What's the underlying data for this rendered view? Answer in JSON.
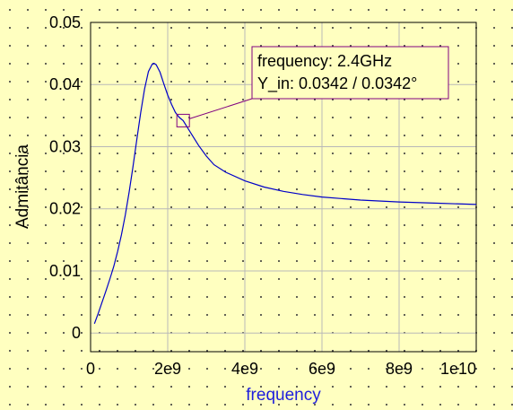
{
  "chart_data": {
    "type": "line",
    "xlabel": "frequency",
    "ylabel": "Admitância",
    "xlim": [
      0,
      10000000000
    ],
    "ylim": [
      -0.003,
      0.05
    ],
    "xticks": [
      {
        "value": 0,
        "label": "0"
      },
      {
        "value": 2000000000,
        "label": "2e9"
      },
      {
        "value": 4000000000,
        "label": "4e9"
      },
      {
        "value": 6000000000,
        "label": "6e9"
      },
      {
        "value": 8000000000,
        "label": "8e9"
      },
      {
        "value": 10000000000,
        "label": "1e10"
      }
    ],
    "yticks": [
      {
        "value": 0,
        "label": "0"
      },
      {
        "value": 0.01,
        "label": "0.01"
      },
      {
        "value": 0.02,
        "label": "0.02"
      },
      {
        "value": 0.03,
        "label": "0.03"
      },
      {
        "value": 0.04,
        "label": "0.04"
      },
      {
        "value": 0.05,
        "label": "0.05"
      }
    ],
    "grid": true,
    "series": [
      {
        "color": "#0000c8",
        "points": [
          [
            100000000,
            0.0015
          ],
          [
            200000000,
            0.0032
          ],
          [
            300000000,
            0.005
          ],
          [
            400000000,
            0.0068
          ],
          [
            500000000,
            0.0087
          ],
          [
            600000000,
            0.0107
          ],
          [
            700000000,
            0.0131
          ],
          [
            800000000,
            0.0158
          ],
          [
            900000000,
            0.019
          ],
          [
            1000000000,
            0.0227
          ],
          [
            1100000000,
            0.0268
          ],
          [
            1200000000,
            0.0312
          ],
          [
            1300000000,
            0.0355
          ],
          [
            1400000000,
            0.0393
          ],
          [
            1500000000,
            0.0421
          ],
          [
            1600000000,
            0.0433
          ],
          [
            1650000000,
            0.0434
          ],
          [
            1700000000,
            0.0432
          ],
          [
            1800000000,
            0.042
          ],
          [
            1900000000,
            0.0401
          ],
          [
            2000000000,
            0.0383
          ],
          [
            2100000000,
            0.0368
          ],
          [
            2200000000,
            0.0355
          ],
          [
            2300000000,
            0.0347
          ],
          [
            2400000000,
            0.0342
          ],
          [
            2600000000,
            0.0322
          ],
          [
            2800000000,
            0.0302
          ],
          [
            3000000000,
            0.0285
          ],
          [
            3200000000,
            0.0271
          ],
          [
            3500000000,
            0.0259
          ],
          [
            4000000000,
            0.0245
          ],
          [
            4500000000,
            0.0235
          ],
          [
            5000000000,
            0.0228
          ],
          [
            5500000000,
            0.0223
          ],
          [
            6000000000,
            0.0219
          ],
          [
            7000000000,
            0.0214
          ],
          [
            8000000000,
            0.0211
          ],
          [
            9000000000,
            0.0209
          ],
          [
            10000000000,
            0.0207
          ]
        ]
      }
    ],
    "marker": {
      "x": 2400000000,
      "y": 0.0342,
      "color": "#800080",
      "lines": [
        "frequency: 2.4GHz",
        "Y_in: 0.0342 / 0.0342°"
      ]
    }
  }
}
